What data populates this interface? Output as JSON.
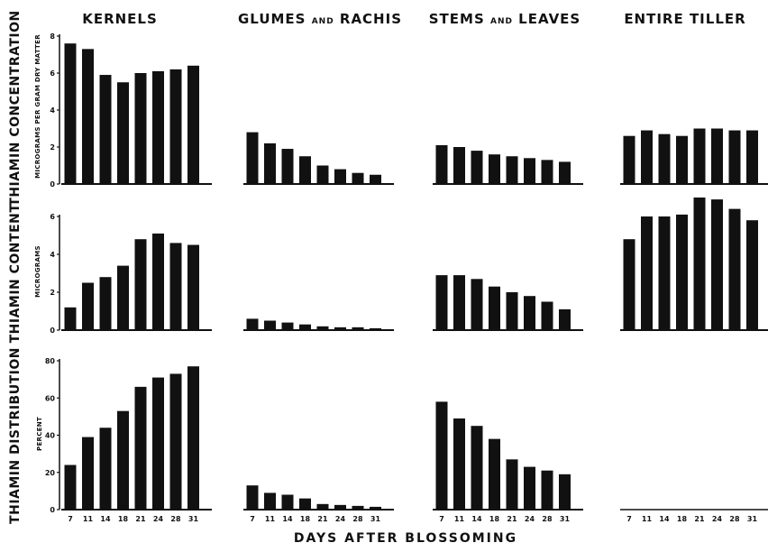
{
  "chart_data": {
    "type": "bar",
    "categories": [
      "7",
      "11",
      "14",
      "18",
      "21",
      "24",
      "28",
      "31"
    ],
    "columns": [
      "KERNELS",
      "GLUMES AND RACHIS",
      "STEMS AND LEAVES",
      "ENTIRE TILLER"
    ],
    "rows": [
      {
        "label": "THIAMIN CONCENTRATION",
        "unit": "MICROGRAMS PER GRAM DRY MATTER",
        "ylim": [
          0,
          8
        ],
        "yticks": [
          "0",
          "2",
          "4",
          "6",
          "8"
        ],
        "series": [
          {
            "values": [
              7.6,
              7.3,
              5.9,
              5.5,
              6.0,
              6.1,
              6.2,
              6.4
            ]
          },
          {
            "values": [
              2.8,
              2.2,
              1.9,
              1.5,
              1.0,
              0.8,
              0.6,
              0.5
            ]
          },
          {
            "values": [
              2.1,
              2.0,
              1.8,
              1.6,
              1.5,
              1.4,
              1.3,
              1.2
            ]
          },
          {
            "values": [
              2.6,
              2.9,
              2.7,
              2.6,
              3.0,
              3.0,
              2.9,
              2.9
            ]
          }
        ]
      },
      {
        "label": "THIAMIN CONTENT",
        "unit": "MICROGRAMS",
        "ylim": [
          0,
          6
        ],
        "yticks": [
          "0",
          "2",
          "4",
          "6"
        ],
        "series": [
          {
            "values": [
              1.2,
              2.5,
              2.8,
              3.4,
              4.8,
              5.1,
              4.6,
              4.5
            ]
          },
          {
            "values": [
              0.6,
              0.5,
              0.4,
              0.3,
              0.2,
              0.15,
              0.15,
              0.1
            ]
          },
          {
            "values": [
              2.9,
              2.9,
              2.7,
              2.3,
              2.0,
              1.8,
              1.5,
              1.1
            ]
          },
          {
            "values": [
              4.8,
              6.0,
              6.0,
              6.1,
              7.0,
              6.9,
              6.4,
              5.8
            ]
          }
        ]
      },
      {
        "label": "THIAMIN DISTRIBUTION",
        "unit": "PERCENT",
        "ylim": [
          0,
          80
        ],
        "yticks": [
          "0",
          "20",
          "40",
          "60",
          "80"
        ],
        "series": [
          {
            "values": [
              24,
              39,
              44,
              53,
              66,
              71,
              73,
              77
            ]
          },
          {
            "values": [
              13,
              9,
              8,
              6,
              3,
              2.5,
              2,
              1.5
            ]
          },
          {
            "values": [
              58,
              49,
              45,
              38,
              27,
              23,
              21,
              19
            ]
          },
          {
            "values": [
              0,
              0,
              0,
              0,
              0,
              0,
              0,
              0
            ]
          }
        ]
      }
    ],
    "xlabel": "DAYS AFTER BLOSSOMING",
    "grid": false
  }
}
